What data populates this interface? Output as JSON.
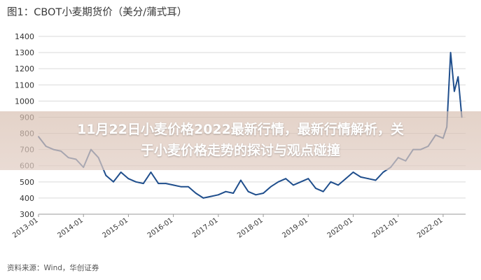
{
  "figure": {
    "title": "图1：CBOT小麦期货价（美分/蒲式耳）",
    "source": "资料来源：Wind，华创证券"
  },
  "overlay": {
    "headline_line1": "11月22日小麦价格2022最新行情，最新行情解析，关",
    "headline_line2": "于小麦价格走势的探讨与观点碰撞"
  },
  "colors": {
    "line": "#1f4e8c",
    "grid": "#d9d9d9",
    "axis": "#999999"
  },
  "chart_data": {
    "type": "line",
    "title": "CBOT小麦期货价（美分/蒲式耳）",
    "xlabel": "",
    "ylabel": "",
    "ylim": [
      300,
      1400
    ],
    "y_ticks": [
      300,
      400,
      500,
      600,
      700,
      800,
      900,
      1000,
      1100,
      1200,
      1300,
      1400
    ],
    "x_ticks": [
      "2013-01",
      "2014-01",
      "2015-01",
      "2016-01",
      "2017-01",
      "2018-01",
      "2019-01",
      "2020-01",
      "2021-01",
      "2022-01"
    ],
    "grid": true,
    "legend": "none",
    "series": [
      {
        "x": [
          "2013-01",
          "2013-03",
          "2013-05",
          "2013-07",
          "2013-09",
          "2013-11",
          "2014-01",
          "2014-03",
          "2014-05",
          "2014-07",
          "2014-09",
          "2014-11",
          "2015-01",
          "2015-03",
          "2015-05",
          "2015-07",
          "2015-09",
          "2015-11",
          "2016-01",
          "2016-03",
          "2016-05",
          "2016-07",
          "2016-09",
          "2016-11",
          "2017-01",
          "2017-03",
          "2017-05",
          "2017-07",
          "2017-09",
          "2017-11",
          "2018-01",
          "2018-03",
          "2018-05",
          "2018-07",
          "2018-09",
          "2018-11",
          "2019-01",
          "2019-03",
          "2019-05",
          "2019-07",
          "2019-09",
          "2019-11",
          "2020-01",
          "2020-03",
          "2020-05",
          "2020-07",
          "2020-09",
          "2020-11",
          "2021-01",
          "2021-03",
          "2021-05",
          "2021-07",
          "2021-09",
          "2021-11",
          "2022-01",
          "2022-02",
          "2022-03",
          "2022-04",
          "2022-05",
          "2022-06"
        ],
        "values": [
          780,
          720,
          700,
          690,
          650,
          640,
          590,
          700,
          650,
          540,
          500,
          560,
          520,
          500,
          490,
          560,
          490,
          490,
          480,
          470,
          470,
          430,
          400,
          410,
          420,
          440,
          430,
          510,
          440,
          420,
          430,
          470,
          500,
          520,
          480,
          500,
          520,
          460,
          440,
          500,
          480,
          520,
          560,
          530,
          520,
          510,
          560,
          590,
          650,
          630,
          700,
          700,
          720,
          790,
          770,
          840,
          1300,
          1060,
          1150,
          900
        ]
      }
    ]
  }
}
